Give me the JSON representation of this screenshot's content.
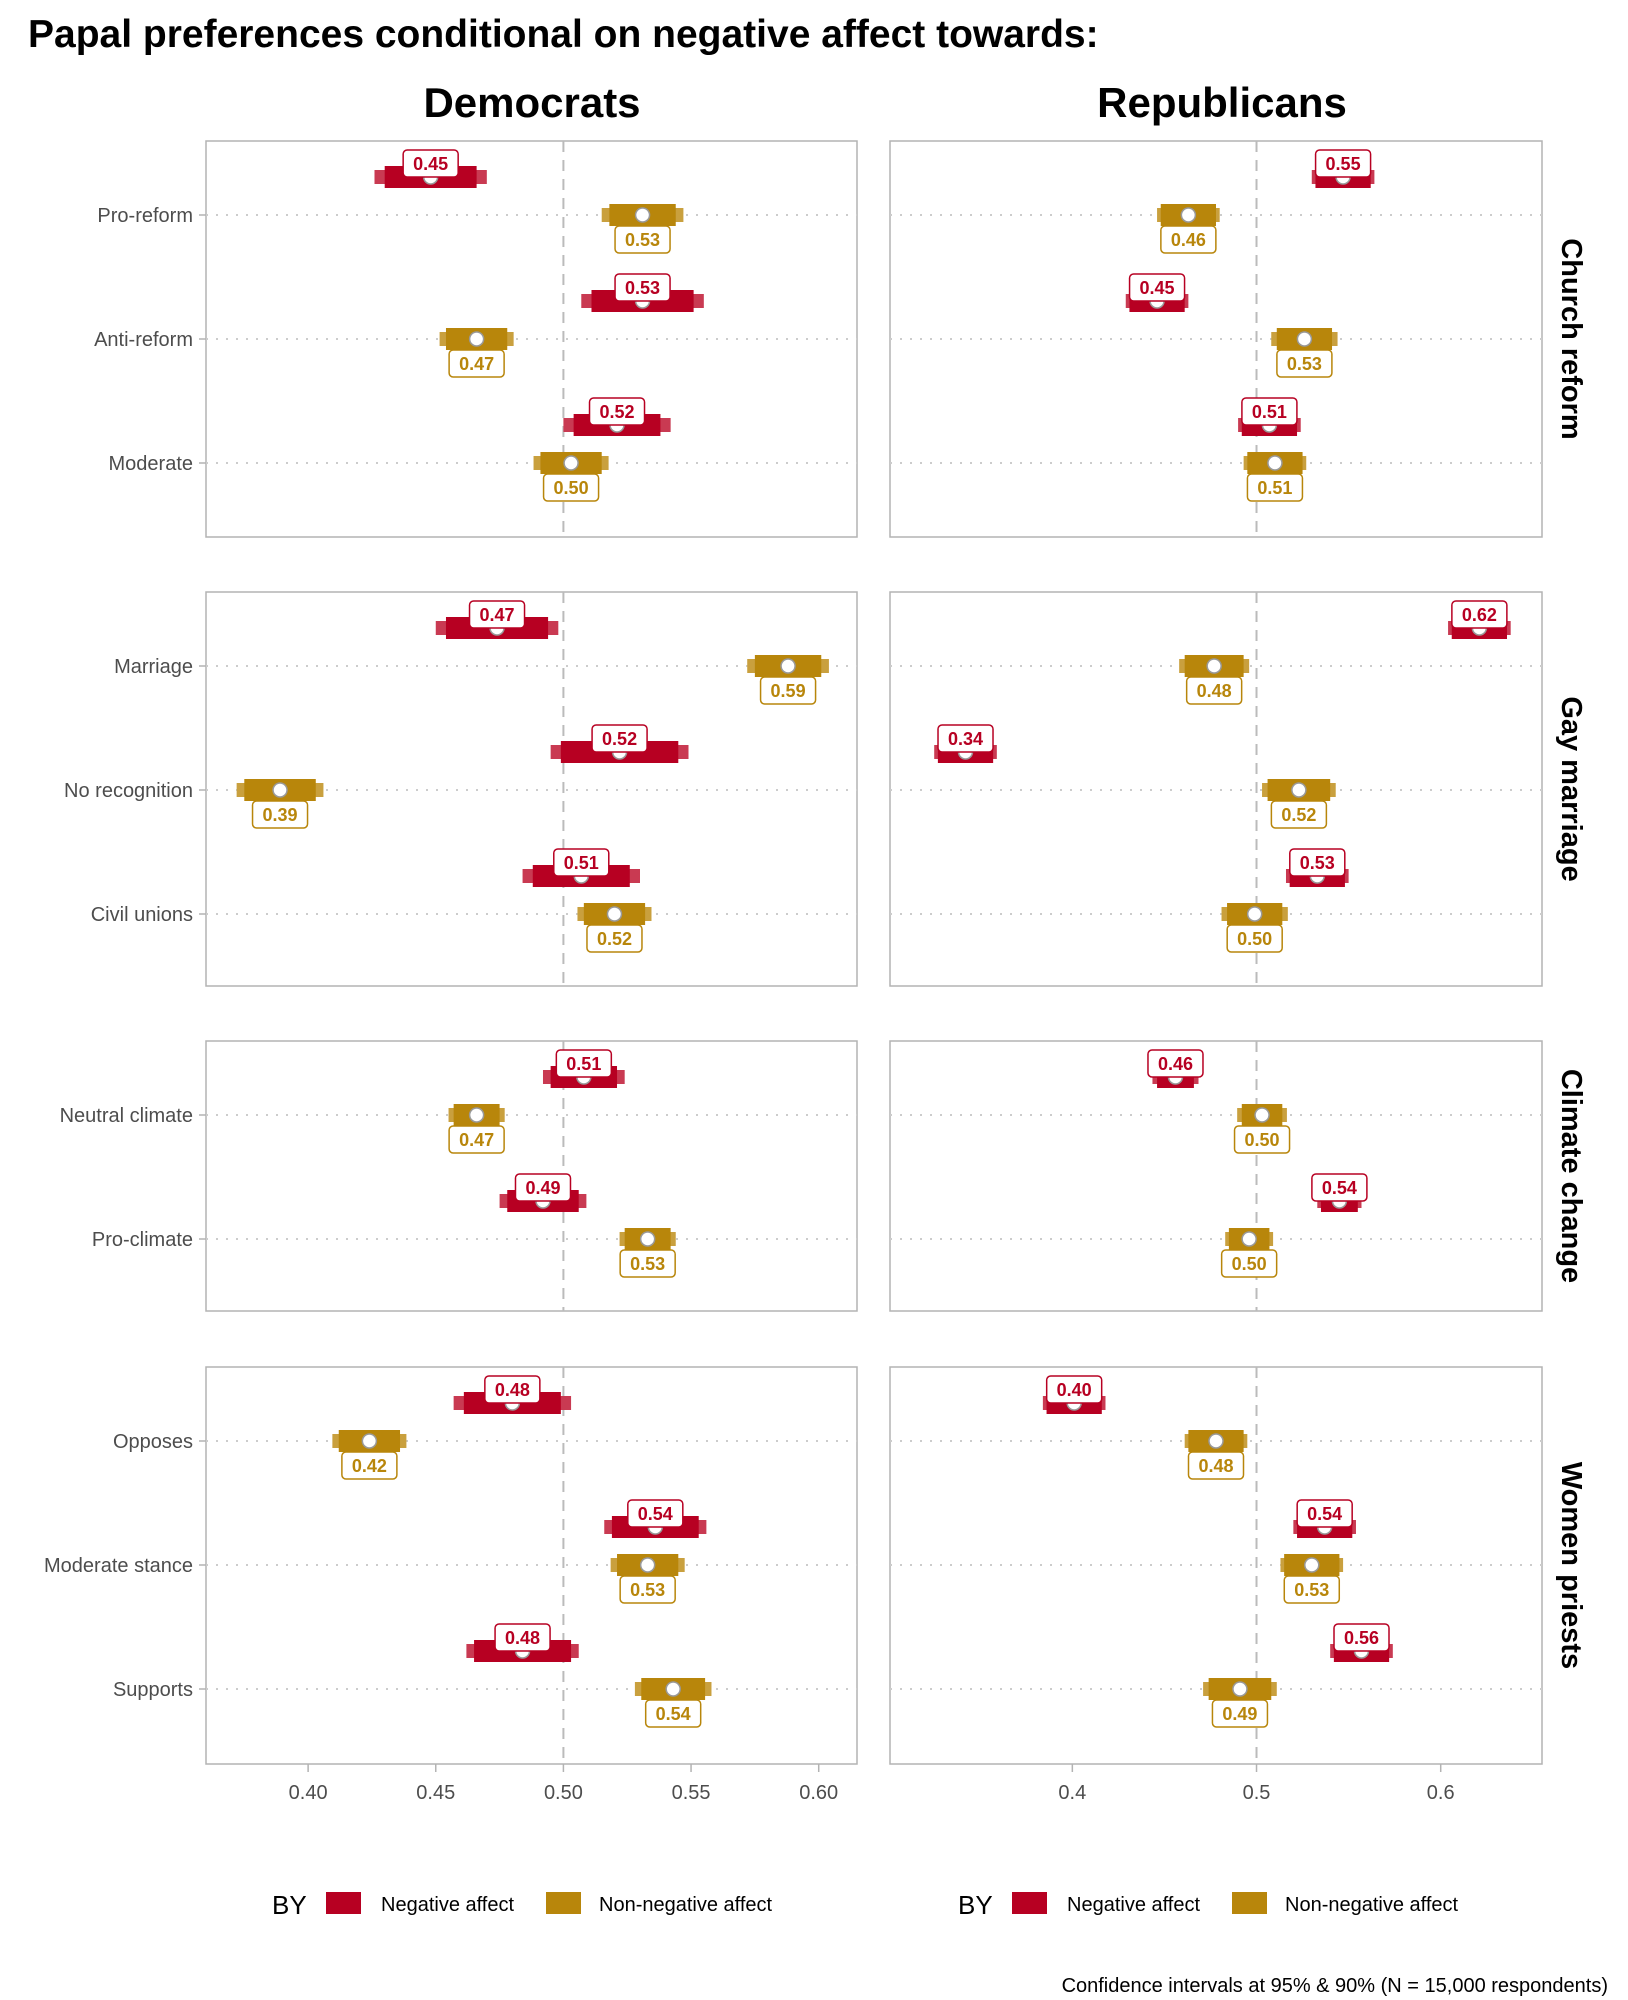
{
  "chart_data": {
    "type": "dot-interval",
    "title": "Papal preferences conditional on negative affect towards:",
    "caption": "Confidence intervals at 95% & 90% (N = 15,000 respondents)",
    "columns": [
      {
        "name": "Democrats",
        "xlim": [
          0.36,
          0.615
        ],
        "ticks": [
          0.4,
          0.45,
          0.5,
          0.55,
          0.6
        ],
        "tick_labels": [
          "0.40",
          "0.45",
          "0.50",
          "0.55",
          "0.60"
        ],
        "reference_line": 0.5
      },
      {
        "name": "Republicans",
        "xlim": [
          0.301,
          0.655
        ],
        "ticks": [
          0.4,
          0.5,
          0.6
        ],
        "tick_labels": [
          "0.4",
          "0.5",
          "0.6"
        ],
        "reference_line": 0.5
      }
    ],
    "legend": {
      "title": "BY",
      "placement": "bottom",
      "entries": [
        {
          "name": "Negative affect",
          "color": "#B70022"
        },
        {
          "name": "Non-negative affect",
          "color": "#B8860B"
        }
      ]
    },
    "colors": {
      "negative": "#B70022",
      "negative_light": "#C93A52",
      "nonnegative": "#B8860B",
      "nonnegative_light": "#C9A03E"
    },
    "facets": [
      {
        "name": "Church reform",
        "categories": [
          "Pro-reform",
          "Anti-reform",
          "Moderate"
        ],
        "Democrats": {
          "negative": [
            {
              "est": 0.45,
              "se95": 0.022,
              "se90": 0.018
            },
            {
              "est": 0.53,
              "se95": 0.024,
              "se90": 0.02
            },
            {
              "est": 0.52,
              "se95": 0.021,
              "se90": 0.017
            }
          ],
          "nonnegative": [
            {
              "est": 0.53,
              "se95": 0.016,
              "se90": 0.013
            },
            {
              "est": 0.47,
              "se95": 0.0145,
              "se90": 0.012
            },
            {
              "est": 0.5,
              "se95": 0.0147,
              "se90": 0.012
            }
          ],
          "neg_points": [
            0.448,
            0.531,
            0.521
          ],
          "non_points": [
            0.531,
            0.466,
            0.503
          ]
        },
        "Republicans": {
          "negative": [
            {
              "est": 0.55,
              "se95": 0.017,
              "se90": 0.015
            },
            {
              "est": 0.45,
              "se95": 0.017,
              "se90": 0.015
            },
            {
              "est": 0.51,
              "se95": 0.017,
              "se90": 0.015
            }
          ],
          "nonnegative": [
            {
              "est": 0.46,
              "se95": 0.017,
              "se90": 0.015
            },
            {
              "est": 0.53,
              "se95": 0.018,
              "se90": 0.015
            },
            {
              "est": 0.51,
              "se95": 0.017,
              "se90": 0.015
            }
          ],
          "neg_points": [
            0.547,
            0.446,
            0.507
          ],
          "non_points": [
            0.463,
            0.526,
            0.51
          ]
        }
      },
      {
        "name": "Gay marriage",
        "categories": [
          "Marriage",
          "No recognition",
          "Civil unions"
        ],
        "Democrats": {
          "negative": [
            {
              "est": 0.47,
              "se95": 0.024,
              "se90": 0.02
            },
            {
              "est": 0.52,
              "se95": 0.027,
              "se90": 0.023
            },
            {
              "est": 0.51,
              "se95": 0.023,
              "se90": 0.019
            }
          ],
          "nonnegative": [
            {
              "est": 0.59,
              "se95": 0.016,
              "se90": 0.013
            },
            {
              "est": 0.39,
              "se95": 0.017,
              "se90": 0.014
            },
            {
              "est": 0.52,
              "se95": 0.0145,
              "se90": 0.012
            }
          ],
          "neg_points": [
            0.474,
            0.522,
            0.507
          ],
          "non_points": [
            0.588,
            0.389,
            0.52
          ]
        },
        "Republicans": {
          "negative": [
            {
              "est": 0.62,
              "se95": 0.017,
              "se90": 0.015
            },
            {
              "est": 0.34,
              "se95": 0.017,
              "se90": 0.015
            },
            {
              "est": 0.53,
              "se95": 0.017,
              "se90": 0.015
            }
          ],
          "nonnegative": [
            {
              "est": 0.48,
              "se95": 0.019,
              "se90": 0.016
            },
            {
              "est": 0.52,
              "se95": 0.02,
              "se90": 0.017
            },
            {
              "est": 0.5,
              "se95": 0.018,
              "se90": 0.015
            }
          ],
          "neg_points": [
            0.621,
            0.342,
            0.533
          ],
          "non_points": [
            0.477,
            0.523,
            0.499
          ]
        }
      },
      {
        "name": "Climate change",
        "categories": [
          "Neutral climate",
          "Pro-climate"
        ],
        "Democrats": {
          "negative": [
            {
              "est": 0.51,
              "se95": 0.016,
              "se90": 0.013
            },
            {
              "est": 0.49,
              "se95": 0.017,
              "se90": 0.014
            }
          ],
          "nonnegative": [
            {
              "est": 0.47,
              "se95": 0.011,
              "se90": 0.009
            },
            {
              "est": 0.53,
              "se95": 0.011,
              "se90": 0.009
            }
          ],
          "neg_points": [
            0.508,
            0.492
          ],
          "non_points": [
            0.466,
            0.533
          ]
        },
        "Republicans": {
          "negative": [
            {
              "est": 0.46,
              "se95": 0.0125,
              "se90": 0.01
            },
            {
              "est": 0.54,
              "se95": 0.012,
              "se90": 0.01
            }
          ],
          "nonnegative": [
            {
              "est": 0.5,
              "se95": 0.0135,
              "se90": 0.011
            },
            {
              "est": 0.5,
              "se95": 0.013,
              "se90": 0.011
            }
          ],
          "neg_points": [
            0.456,
            0.545
          ],
          "non_points": [
            0.503,
            0.496
          ]
        }
      },
      {
        "name": "Women priests",
        "categories": [
          "Opposes",
          "Moderate stance",
          "Supports"
        ],
        "Democrats": {
          "negative": [
            {
              "est": 0.48,
              "se95": 0.023,
              "se90": 0.019
            },
            {
              "est": 0.54,
              "se95": 0.02,
              "se90": 0.017
            },
            {
              "est": 0.48,
              "se95": 0.022,
              "se90": 0.019
            }
          ],
          "nonnegative": [
            {
              "est": 0.42,
              "se95": 0.0145,
              "se90": 0.012
            },
            {
              "est": 0.53,
              "se95": 0.0145,
              "se90": 0.012
            },
            {
              "est": 0.54,
              "se95": 0.015,
              "se90": 0.0125
            }
          ],
          "neg_points": [
            0.48,
            0.536,
            0.484
          ],
          "non_points": [
            0.424,
            0.533,
            0.543
          ]
        },
        "Republicans": {
          "negative": [
            {
              "est": 0.4,
              "se95": 0.017,
              "se90": 0.015
            },
            {
              "est": 0.54,
              "se95": 0.017,
              "se90": 0.015
            },
            {
              "est": 0.56,
              "se95": 0.017,
              "se90": 0.015
            }
          ],
          "nonnegative": [
            {
              "est": 0.48,
              "se95": 0.017,
              "se90": 0.015
            },
            {
              "est": 0.53,
              "se95": 0.017,
              "se90": 0.015
            },
            {
              "est": 0.49,
              "se95": 0.02,
              "se90": 0.017
            }
          ],
          "neg_points": [
            0.401,
            0.537,
            0.557
          ],
          "non_points": [
            0.478,
            0.53,
            0.491
          ]
        }
      }
    ]
  }
}
